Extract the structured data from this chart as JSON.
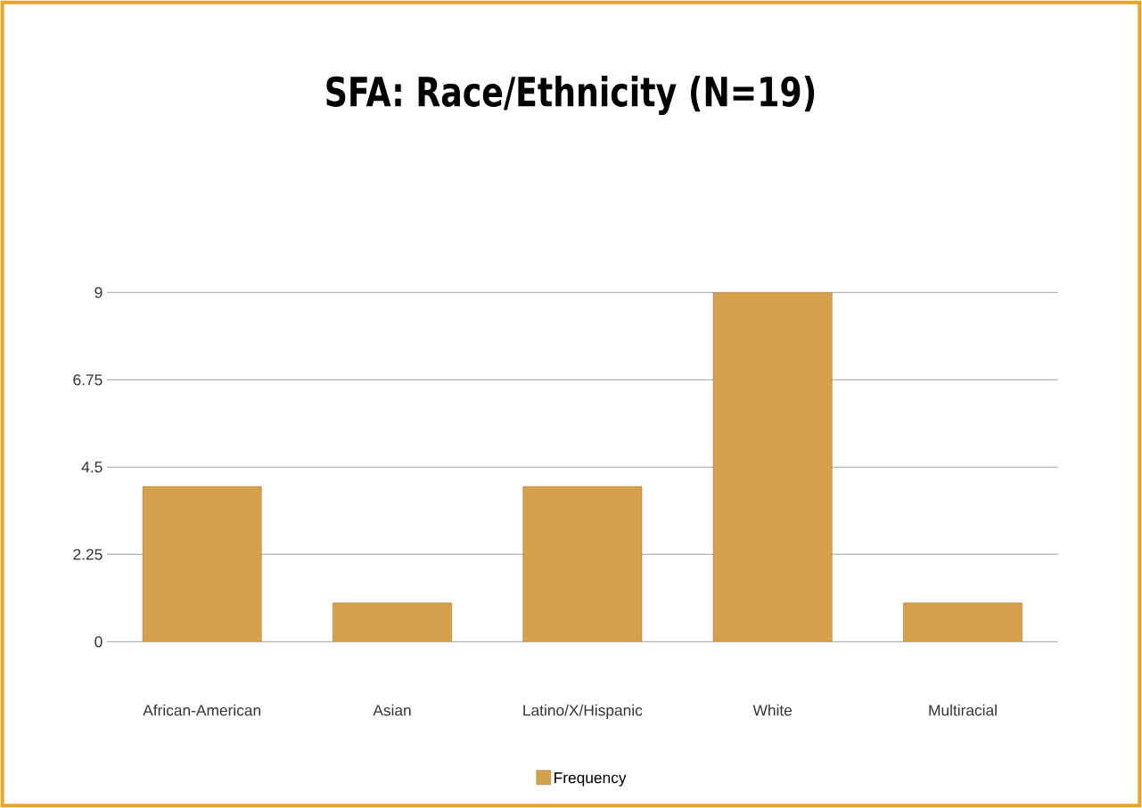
{
  "chart_data": {
    "type": "bar",
    "title": "SFA: Race/Ethnicity (N=19)",
    "categories": [
      "African-American",
      "Asian",
      "Latino/X/Hispanic",
      "White",
      "Multiracial"
    ],
    "series": [
      {
        "name": "Frequency",
        "color": "#d4a04c",
        "values": [
          4,
          1,
          4,
          9,
          1
        ]
      }
    ],
    "ylim": [
      0,
      9
    ],
    "yticks": [
      0,
      2.25,
      4.5,
      6.75,
      9
    ],
    "grid": "y",
    "legend": "bottom"
  }
}
